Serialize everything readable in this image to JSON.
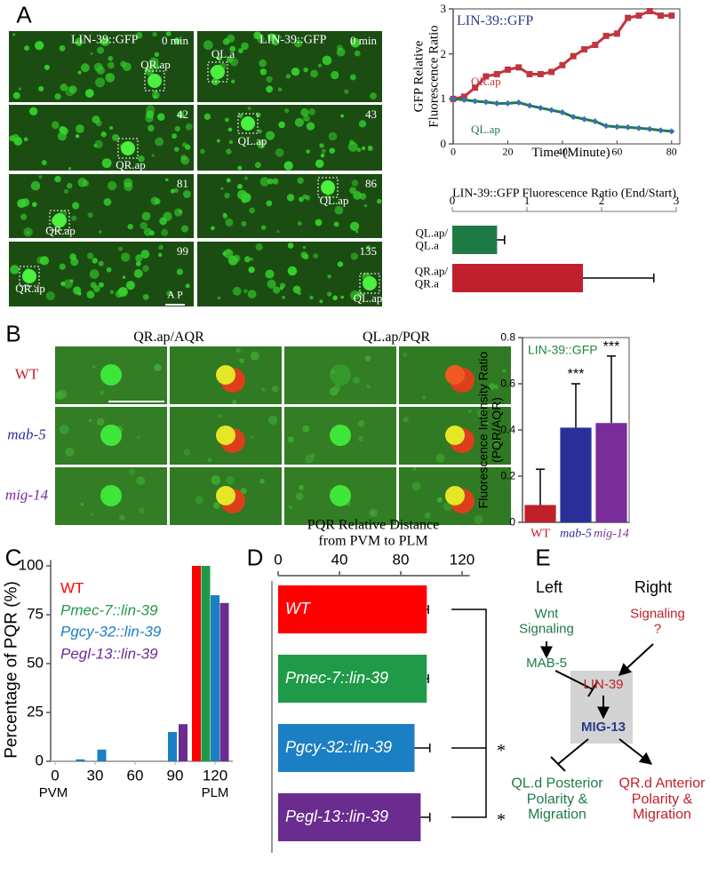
{
  "panel_labels": [
    "A",
    "B",
    "C",
    "D",
    "E"
  ],
  "panel_a": {
    "columns": [
      {
        "marker": "LIN-39::GFP",
        "frames": [
          {
            "time": "0 min",
            "cell": "QR.ap"
          },
          {
            "time": "42",
            "cell": "QR.ap"
          },
          {
            "time": "81",
            "cell": "QR.ap"
          },
          {
            "time": "99",
            "cell": "QR.ap"
          }
        ]
      },
      {
        "marker": "LIN-39::GFP",
        "frames": [
          {
            "time": "0 min",
            "cell": "QL.a"
          },
          {
            "time": "43",
            "cell": "QL.ap"
          },
          {
            "time": "86",
            "cell": "QL.ap"
          },
          {
            "time": "135",
            "cell": "QL.ap"
          }
        ]
      }
    ],
    "orientation": "A P"
  },
  "panel_b": {
    "column_titles": [
      "QR.ap/AQR",
      "QL.ap/PQR"
    ],
    "row_labels": [
      "WT",
      "mab-5",
      "mig-14"
    ],
    "row_colors": [
      "#c0202a",
      "#2b2f9a",
      "#7a2c9a"
    ]
  },
  "chart_data": [
    {
      "type": "line",
      "title": "LIN-39::GFP",
      "ylabel": "GFP Relative\nFluorescence Ratio",
      "xlabel": "Time (Minute)",
      "x": [
        0,
        4,
        8,
        12,
        16,
        20,
        24,
        28,
        32,
        36,
        40,
        44,
        48,
        52,
        56,
        60,
        64,
        68,
        72,
        76,
        80
      ],
      "series": [
        {
          "name": "QR.ap",
          "color": "#c0353e",
          "marker": "square",
          "marker_color": "#c0353e",
          "values": [
            1.0,
            1.05,
            1.25,
            1.5,
            1.55,
            1.65,
            1.7,
            1.55,
            1.55,
            1.6,
            1.75,
            1.95,
            2.1,
            2.2,
            2.4,
            2.45,
            2.8,
            2.85,
            2.95,
            2.85,
            2.85
          ]
        },
        {
          "name": "QL.ap",
          "color": "#1f7a4a",
          "marker": "diamond",
          "marker_color": "#3a6fb0",
          "values": [
            1.0,
            0.98,
            0.95,
            0.93,
            0.9,
            0.9,
            0.92,
            0.85,
            0.8,
            0.75,
            0.7,
            0.6,
            0.55,
            0.5,
            0.4,
            0.38,
            0.37,
            0.35,
            0.33,
            0.3,
            0.28
          ]
        }
      ],
      "xlim": [
        0,
        83
      ],
      "ylim": [
        0,
        3
      ],
      "xticks": [
        0,
        20,
        40,
        60,
        80
      ],
      "yticks": [
        0,
        1,
        2,
        3
      ]
    },
    {
      "type": "bar",
      "orientation": "horizontal",
      "title": "LIN-39::GFP Fluorescence Ratio (End/Start)",
      "categories": [
        "QL.ap/\nQL.a",
        "QR.ap/\nQR.a"
      ],
      "values": [
        0.6,
        1.75
      ],
      "errors": [
        0.1,
        0.95
      ],
      "colors": [
        "#1e7a45",
        "#c0202e"
      ],
      "xlim": [
        0,
        3
      ],
      "xticks": [
        0,
        1,
        2,
        3
      ]
    },
    {
      "type": "bar",
      "title": "LIN-39::GFP",
      "ylabel": "Fluorescence Intensity Ratio\n(PQR/AQR)",
      "categories": [
        "WT",
        "mab-5",
        "mig-14"
      ],
      "values": [
        0.075,
        0.41,
        0.43
      ],
      "errors": [
        0.155,
        0.19,
        0.29
      ],
      "significance": [
        null,
        "***",
        "***"
      ],
      "colors": [
        "#c0202a",
        "#2b2f9a",
        "#7a2c9a"
      ],
      "ylim": [
        0,
        0.8
      ],
      "yticks": [
        0,
        0.2,
        0.4,
        0.6,
        0.8
      ]
    },
    {
      "type": "bar",
      "ylabel": "Percentage of PQR (%)",
      "x_end_labels": [
        "PVM",
        "PLM"
      ],
      "series": [
        {
          "name": "WT",
          "color": "#ff0000",
          "x": [
            106
          ],
          "values": [
            100
          ]
        },
        {
          "name": "Pmec-7::lin-39",
          "color": "#1f9a48",
          "x": [
            113
          ],
          "values": [
            100
          ]
        },
        {
          "name": "Pgcy-32::lin-39",
          "color": "#1b7fc4",
          "x": [
            19,
            35,
            88,
            120
          ],
          "values": [
            1,
            6,
            15,
            85
          ]
        },
        {
          "name": "Pegl-13::lin-39",
          "color": "#6a2c8f",
          "x": [
            96,
            127
          ],
          "values": [
            19,
            81
          ]
        }
      ],
      "xlim": [
        0,
        132
      ],
      "ylim": [
        0,
        103
      ],
      "xticks": [
        0,
        30,
        60,
        90,
        120
      ],
      "yticks": [
        0,
        25,
        50,
        75,
        100
      ]
    },
    {
      "type": "bar",
      "orientation": "horizontal",
      "title": "PQR Relative Distance\nfrom PVM to PLM",
      "categories": [
        "WT",
        "Pmec-7::lin-39",
        "Pgcy-32::lin-39",
        "Pegl-13::lin-39"
      ],
      "values": [
        97,
        97,
        89,
        93
      ],
      "errors": [
        1,
        1,
        10,
        6
      ],
      "significance": [
        null,
        null,
        "*",
        "*"
      ],
      "colors": [
        "#ff0000",
        "#1f9a48",
        "#1b7fc4",
        "#6a2c8f"
      ],
      "xlim": [
        0,
        125
      ],
      "xticks": [
        0,
        40,
        80,
        120
      ]
    }
  ],
  "diagram": {
    "left": "Left",
    "right": "Right",
    "wnt": "Wnt\nSignaling",
    "signal": "Signaling\n?",
    "mab5": "MAB-5",
    "lin39": "LIN-39",
    "mig13": "MIG-13",
    "ql_outcome": "QL.d Posterior\nPolarity &\nMigration",
    "qr_outcome": "QR.d Anterior\nPolarity &\nMigration"
  }
}
